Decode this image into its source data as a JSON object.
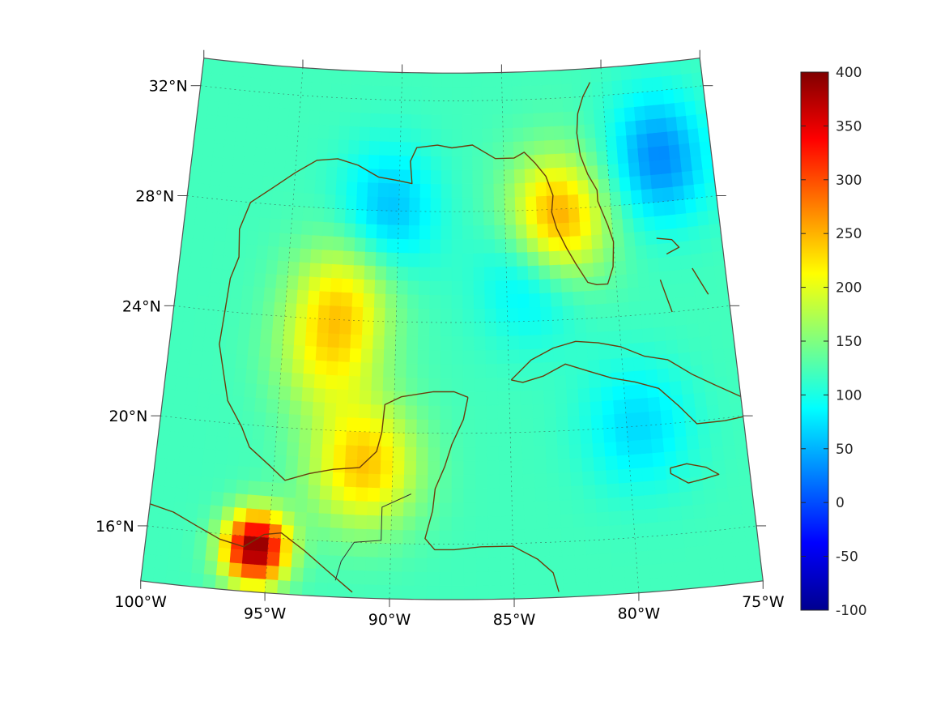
{
  "map": {
    "region": "Gulf of Mexico and Caribbean",
    "projection": "conic",
    "longitude_range": [
      -100,
      -75
    ],
    "latitude_range": [
      14,
      33
    ],
    "grid": true,
    "coastline_color": "#6b3d0c",
    "lat_labels": [
      {
        "value": 32,
        "text": "32°N"
      },
      {
        "value": 28,
        "text": "28°N"
      },
      {
        "value": 24,
        "text": "24°N"
      },
      {
        "value": 20,
        "text": "20°N"
      },
      {
        "value": 16,
        "text": "16°N"
      }
    ],
    "lon_labels": [
      {
        "value": -100,
        "text": "100°W"
      },
      {
        "value": -95,
        "text": "95°W"
      },
      {
        "value": -90,
        "text": "90°W"
      },
      {
        "value": -85,
        "text": "85°W"
      },
      {
        "value": -80,
        "text": "80°W"
      },
      {
        "value": -75,
        "text": "75°W"
      }
    ],
    "field_background_value": 120,
    "field_features": [
      {
        "name": "southern Mexico maximum",
        "lon": -95.5,
        "lat": 15.6,
        "value": 400
      },
      {
        "name": "Tampa Bay maximum",
        "lon": -82.6,
        "lat": 27.6,
        "value": 270
      },
      {
        "name": "Campeche maximum",
        "lon": -91.2,
        "lat": 18.8,
        "value": 240
      },
      {
        "name": "central Gulf high",
        "lon": -92.4,
        "lat": 24.9,
        "value": 205
      },
      {
        "name": "western Gulf high",
        "lon": -93.0,
        "lat": 22.7,
        "value": 195
      },
      {
        "name": "Atlantic low",
        "lon": -77.5,
        "lat": 29.6,
        "value": 30
      },
      {
        "name": "northern Gulf low",
        "lon": -90.5,
        "lat": 28.0,
        "value": 55
      },
      {
        "name": "eastern Gulf low",
        "lon": -83.8,
        "lat": 25.7,
        "value": 60
      },
      {
        "name": "Caribbean low",
        "lon": -79.5,
        "lat": 20.0,
        "value": 70
      }
    ]
  },
  "colorbar": {
    "colormap": "jet",
    "min": -100,
    "max": 400,
    "ticks": [
      {
        "value": 400,
        "text": "400"
      },
      {
        "value": 350,
        "text": "350"
      },
      {
        "value": 300,
        "text": "300"
      },
      {
        "value": 250,
        "text": "250"
      },
      {
        "value": 200,
        "text": "200"
      },
      {
        "value": 150,
        "text": "150"
      },
      {
        "value": 100,
        "text": "100"
      },
      {
        "value": 50,
        "text": "50"
      },
      {
        "value": 0,
        "text": "0"
      },
      {
        "value": -50,
        "text": "-50"
      },
      {
        "value": -100,
        "text": "-100"
      }
    ]
  }
}
